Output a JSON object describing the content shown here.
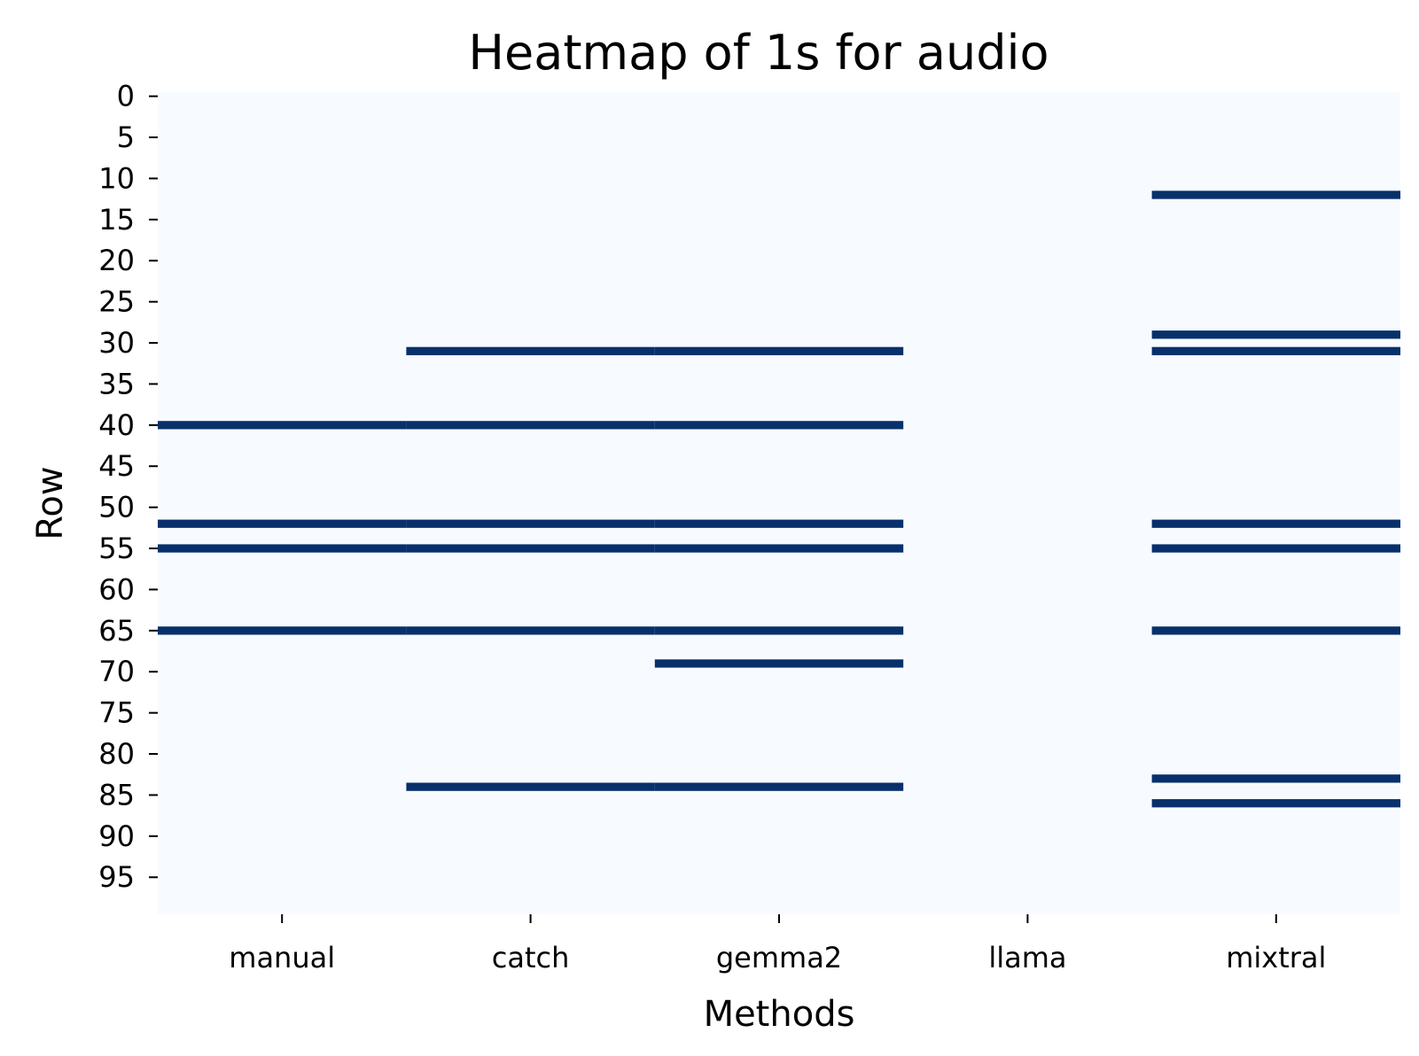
{
  "chart_data": {
    "type": "heatmap",
    "title": "Heatmap of 1s for audio",
    "xlabel": "Methods",
    "ylabel": "Row",
    "categories": [
      "manual",
      "catch",
      "gemma2",
      "llama",
      "mixtral"
    ],
    "row_range": [
      0,
      99
    ],
    "y_ticks": [
      0,
      5,
      10,
      15,
      20,
      25,
      30,
      35,
      40,
      45,
      50,
      55,
      60,
      65,
      70,
      75,
      80,
      85,
      90,
      95
    ],
    "cells_equal_to_1": {
      "manual": [
        40,
        52,
        55,
        65
      ],
      "catch": [
        31,
        40,
        52,
        55,
        65,
        84
      ],
      "gemma2": [
        31,
        40,
        52,
        55,
        65,
        69,
        84
      ],
      "llama": [],
      "mixtral": [
        12,
        29,
        31,
        52,
        55,
        65,
        83,
        86
      ]
    },
    "colors": {
      "zero": "#f7fbff",
      "one": "#08306b"
    },
    "grid": false,
    "colorbar": false
  }
}
